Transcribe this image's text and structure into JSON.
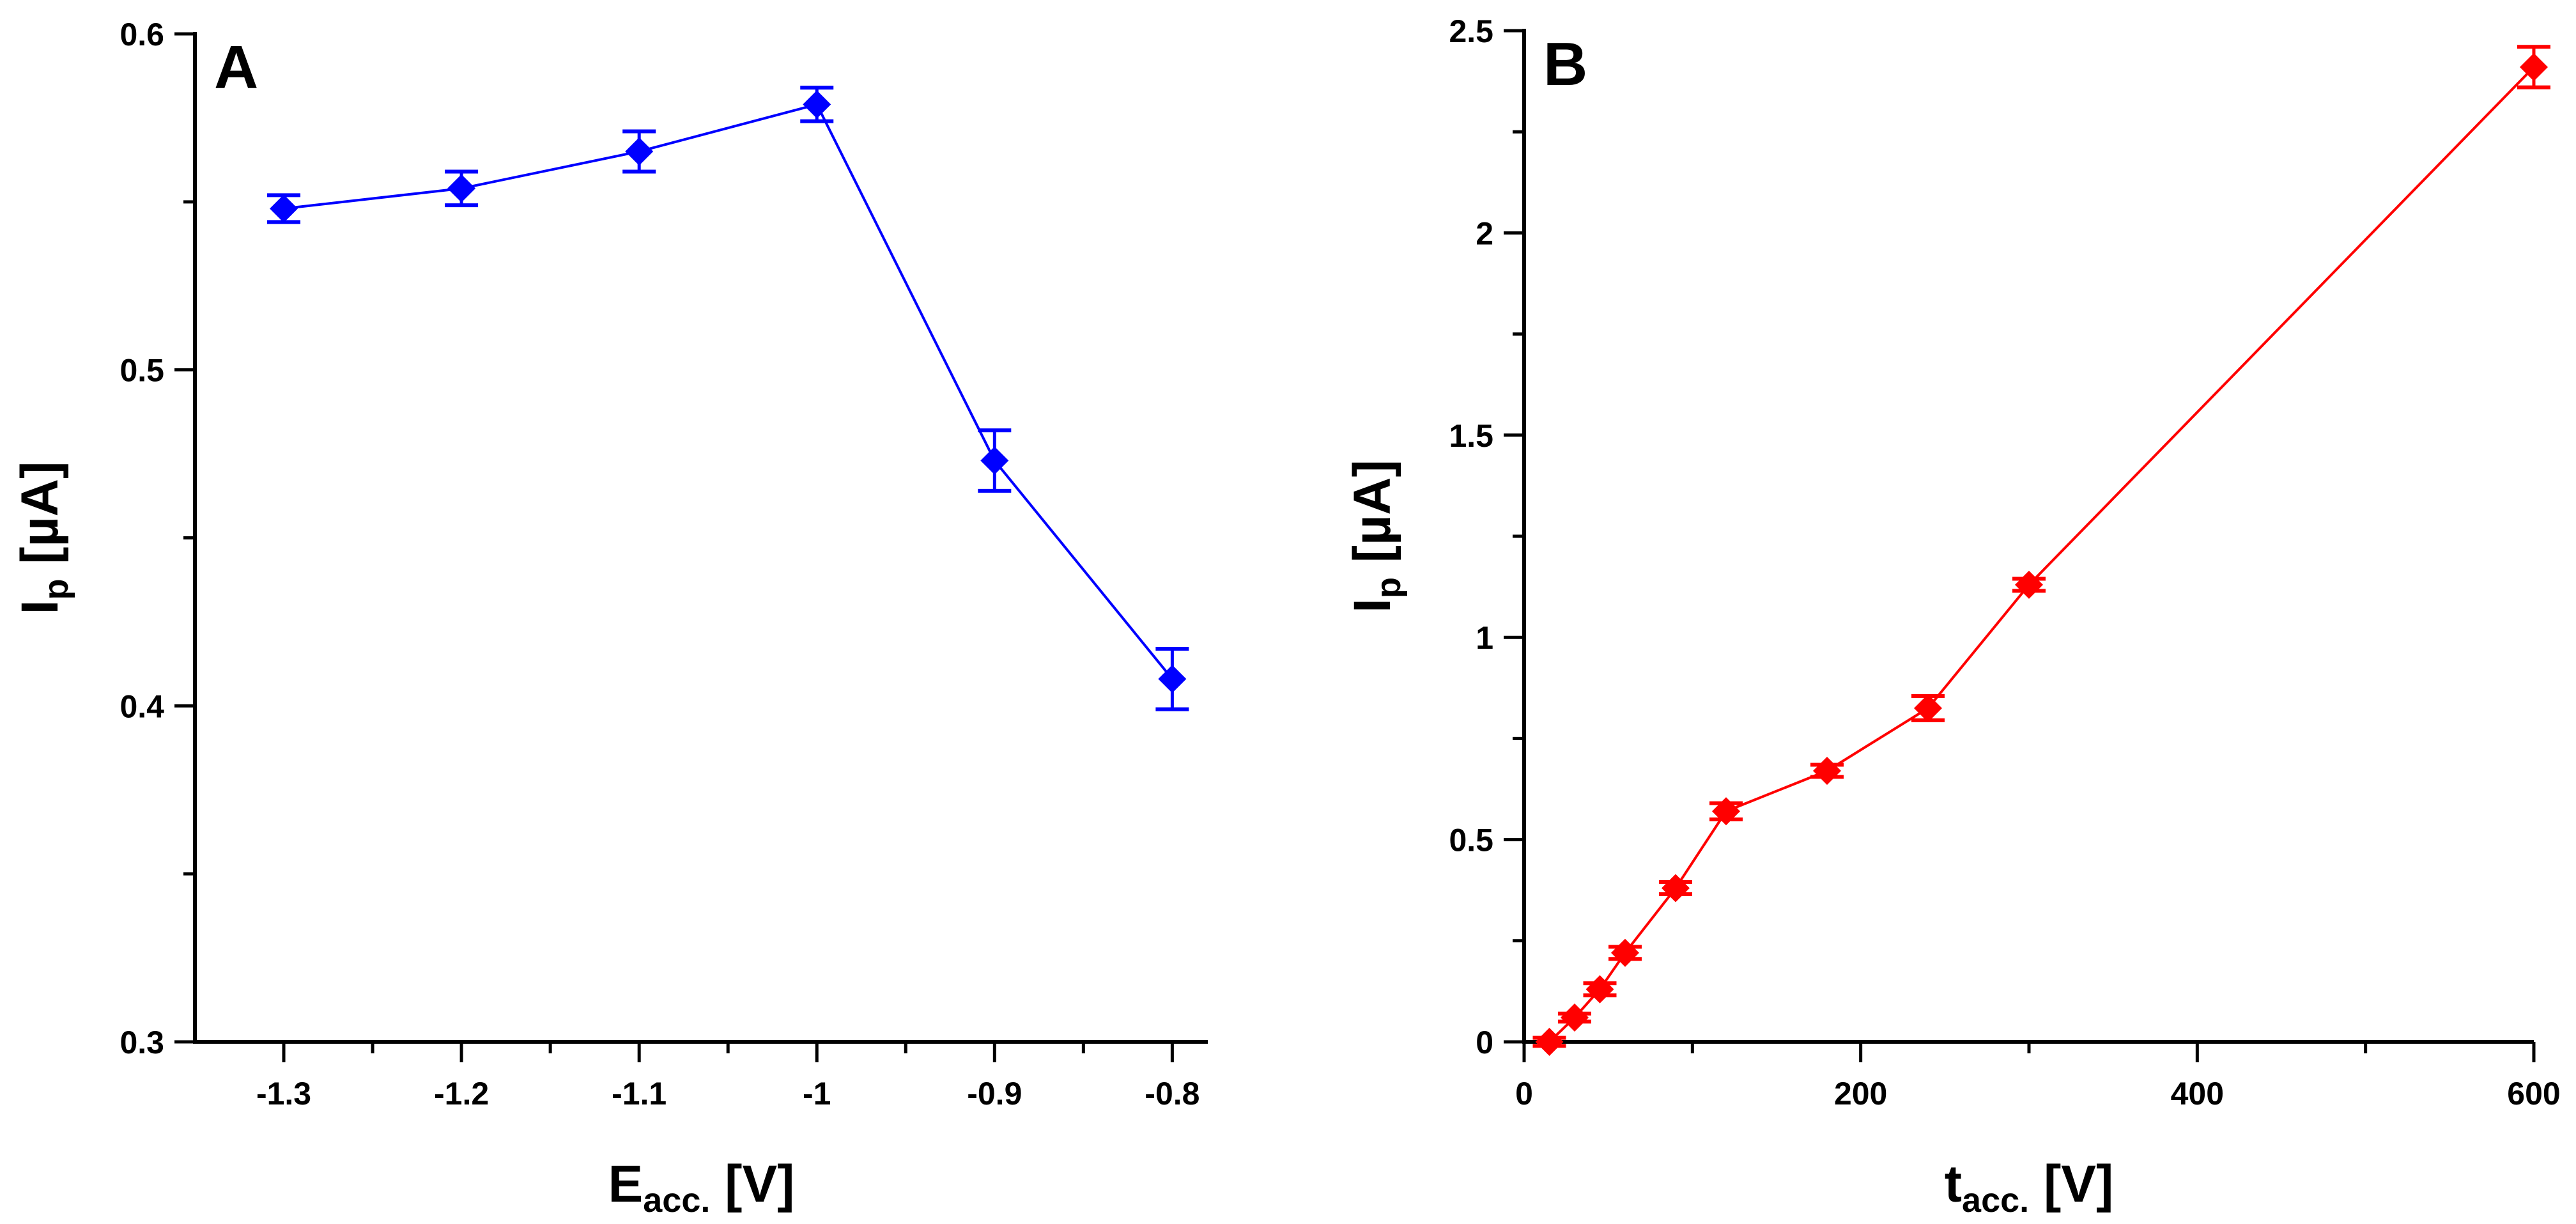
{
  "chart_data": [
    {
      "type": "line",
      "panel_label": "A",
      "color": "#0000ff",
      "marker": "diamond",
      "x_label": {
        "main": "E",
        "sub": "acc.",
        "unit": " [V]"
      },
      "y_label": {
        "main": "I",
        "sub": "p",
        "unit": " [µA]"
      },
      "xlim": [
        -1.35,
        -0.78
      ],
      "ylim": [
        0.3,
        0.6
      ],
      "x_ticks": [
        -1.3,
        -1.2,
        -1.1,
        -1,
        -0.9,
        -0.8
      ],
      "x_tick_labels": [
        "-1.3",
        "-1.2",
        "-1.1",
        "-1",
        "-0.9",
        "-0.8"
      ],
      "x_minor_ticks": [
        -1.25,
        -1.15,
        -1.05,
        -0.95,
        -0.85
      ],
      "y_ticks": [
        0.3,
        0.4,
        0.5,
        0.6
      ],
      "y_tick_labels": [
        "0.3",
        "0.4",
        "0.5",
        "0.6"
      ],
      "y_minor_ticks": [
        0.35,
        0.45,
        0.55
      ],
      "x": [
        -1.3,
        -1.2,
        -1.1,
        -1.0,
        -0.9,
        -0.8
      ],
      "y": [
        0.548,
        0.554,
        0.565,
        0.579,
        0.473,
        0.408
      ],
      "error": [
        0.004,
        0.005,
        0.006,
        0.005,
        0.009,
        0.009
      ]
    },
    {
      "type": "line",
      "panel_label": "B",
      "color": "#ff0000",
      "marker": "diamond",
      "x_label": {
        "main": "t",
        "sub": "acc.",
        "unit": " [V]"
      },
      "y_label": {
        "main": "I",
        "sub": "p",
        "unit": " [µA]"
      },
      "xlim": [
        0,
        600
      ],
      "ylim": [
        0,
        2.5
      ],
      "x_ticks": [
        0,
        200,
        400,
        600
      ],
      "x_tick_labels": [
        "0",
        "200",
        "400",
        "600"
      ],
      "x_minor_ticks": [
        100,
        300,
        500
      ],
      "y_ticks": [
        0,
        0.5,
        1,
        1.5,
        2,
        2.5
      ],
      "y_tick_labels": [
        "0",
        "0.5",
        "1",
        "1.5",
        "2",
        "2.5"
      ],
      "y_minor_ticks": [
        0.25,
        0.75,
        1.25,
        1.75,
        2.25
      ],
      "x": [
        15,
        30,
        45,
        60,
        90,
        120,
        180,
        240,
        300,
        600
      ],
      "y": [
        0.0,
        0.06,
        0.13,
        0.22,
        0.38,
        0.57,
        0.67,
        0.825,
        1.13,
        2.41
      ],
      "error": [
        0.01,
        0.01,
        0.015,
        0.015,
        0.015,
        0.02,
        0.015,
        0.03,
        0.015,
        0.05
      ]
    }
  ]
}
